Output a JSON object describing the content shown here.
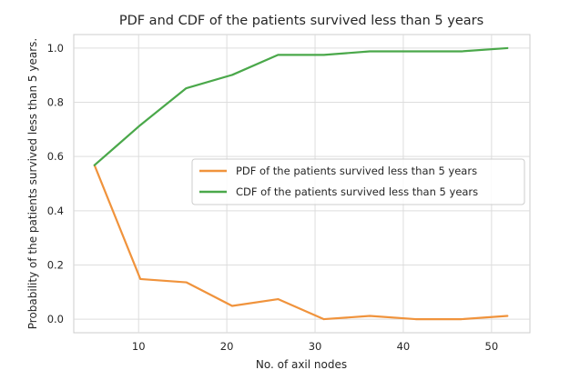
{
  "chart_data": {
    "type": "line",
    "title": "PDF and CDF of the patients survived less than 5 years",
    "xlabel": "No. of axil nodes",
    "ylabel": "Probability of the patients survived less than 5 years.",
    "xlim": [
      2.65,
      54.35
    ],
    "ylim": [
      -0.05,
      1.05
    ],
    "xticks": [
      10,
      20,
      30,
      40,
      50
    ],
    "yticks": [
      0.0,
      0.2,
      0.4,
      0.6,
      0.8,
      1.0
    ],
    "xtick_labels": [
      "10",
      "20",
      "30",
      "40",
      "50"
    ],
    "ytick_labels": [
      "0.0",
      "0.2",
      "0.4",
      "0.6",
      "0.8",
      "1.0"
    ],
    "grid": true,
    "legend_position": "center-right",
    "x": [
      5.0,
      10.2,
      15.4,
      20.6,
      25.8,
      31.0,
      36.2,
      41.4,
      46.6,
      51.8
    ],
    "series": [
      {
        "name": "PDF of the patients survived less than 5 years",
        "color": "#f0933c",
        "values": [
          0.568,
          0.148,
          0.136,
          0.049,
          0.074,
          0.0,
          0.012,
          0.0,
          0.0,
          0.012
        ]
      },
      {
        "name": "CDF of the patients survived less than 5 years",
        "color": "#4aa84a",
        "values": [
          0.568,
          0.716,
          0.852,
          0.901,
          0.975,
          0.975,
          0.988,
          0.988,
          0.988,
          1.0
        ]
      }
    ]
  }
}
